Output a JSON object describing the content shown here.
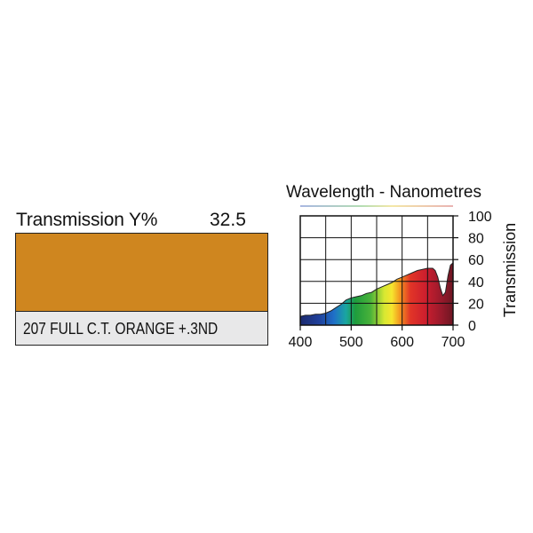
{
  "filter": {
    "transmission_label": "Transmission Y%",
    "transmission_value": "32.5",
    "name": "207 FULL C.T. ORANGE +.3ND",
    "swatch_color": "#cf861f"
  },
  "chart_data": {
    "type": "area",
    "title": "Wavelength - Nanometres",
    "xlabel": "",
    "ylabel": "Transmission",
    "xlim": [
      400,
      700
    ],
    "ylim": [
      0,
      100
    ],
    "xticks": [
      "400",
      "500",
      "600",
      "700"
    ],
    "yticks": [
      "0",
      "20",
      "40",
      "60",
      "80",
      "100"
    ],
    "grid": true,
    "series": [
      {
        "x": [
          400,
          410,
          420,
          430,
          440,
          450,
          460,
          470,
          480,
          490,
          500,
          510,
          520,
          530,
          540,
          550,
          560,
          570,
          580,
          590,
          600,
          610,
          620,
          630,
          640,
          650,
          660,
          665,
          670,
          675,
          680,
          685,
          690,
          695,
          700
        ],
        "values": [
          8,
          9,
          9,
          10,
          10,
          11,
          13,
          16,
          19,
          23,
          25,
          26,
          27,
          29,
          30,
          33,
          35,
          37,
          39,
          42,
          44,
          46,
          48,
          50,
          51,
          52,
          52,
          50,
          44,
          34,
          27,
          30,
          45,
          55,
          57
        ]
      }
    ]
  }
}
